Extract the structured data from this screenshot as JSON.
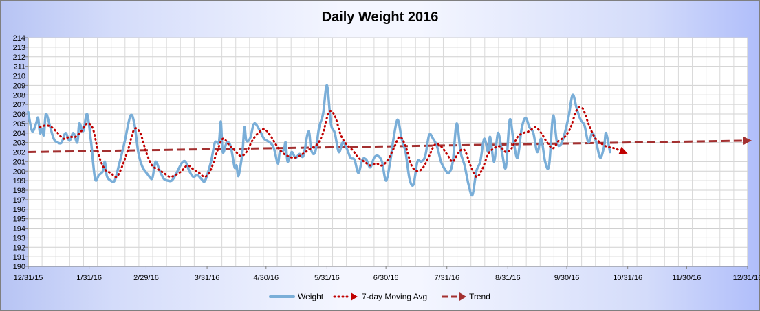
{
  "chart_data": {
    "type": "line",
    "title": "Daily Weight 2016",
    "ylim": [
      190,
      214
    ],
    "xlim": [
      "2015-12-31",
      "2016-12-31"
    ],
    "y_ticks": [
      "190",
      "191",
      "192",
      "193",
      "194",
      "195",
      "196",
      "197",
      "198",
      "199",
      "200",
      "201",
      "202",
      "203",
      "204",
      "205",
      "206",
      "207",
      "208",
      "209",
      "210",
      "211",
      "212",
      "213",
      "214"
    ],
    "x_ticks": [
      {
        "label": "12/31/15",
        "date": "2015-12-31"
      },
      {
        "label": "1/31/16",
        "date": "2016-01-31"
      },
      {
        "label": "2/29/16",
        "date": "2016-02-29"
      },
      {
        "label": "3/31/16",
        "date": "2016-03-31"
      },
      {
        "label": "4/30/16",
        "date": "2016-04-30"
      },
      {
        "label": "5/31/16",
        "date": "2016-05-31"
      },
      {
        "label": "6/30/16",
        "date": "2016-06-30"
      },
      {
        "label": "7/31/16",
        "date": "2016-07-31"
      },
      {
        "label": "8/31/16",
        "date": "2016-08-31"
      },
      {
        "label": "9/30/16",
        "date": "2016-09-30"
      },
      {
        "label": "10/31/16",
        "date": "2016-10-31"
      },
      {
        "label": "11/30/16",
        "date": "2016-11-30"
      },
      {
        "label": "12/31/16",
        "date": "2016-12-31"
      }
    ],
    "grid": true,
    "legend_position": "bottom",
    "series": [
      {
        "name": "Weight",
        "color": "#7aaed8",
        "style": "solid",
        "points": [
          [
            "2015-12-31",
            206.2
          ],
          [
            "2016-01-02",
            204.2
          ],
          [
            "2016-01-04",
            205.0
          ],
          [
            "2016-01-05",
            205.6
          ],
          [
            "2016-01-06",
            204.0
          ],
          [
            "2016-01-07",
            204.4
          ],
          [
            "2016-01-08",
            203.8
          ],
          [
            "2016-01-09",
            206.0
          ],
          [
            "2016-01-11",
            204.8
          ],
          [
            "2016-01-13",
            203.4
          ],
          [
            "2016-01-15",
            203.0
          ],
          [
            "2016-01-17",
            203.0
          ],
          [
            "2016-01-19",
            204.0
          ],
          [
            "2016-01-21",
            203.2
          ],
          [
            "2016-01-23",
            204.0
          ],
          [
            "2016-01-25",
            203.0
          ],
          [
            "2016-01-26",
            205.0
          ],
          [
            "2016-01-28",
            204.2
          ],
          [
            "2016-01-30",
            206.0
          ],
          [
            "2016-02-01",
            203.0
          ],
          [
            "2016-02-03",
            199.2
          ],
          [
            "2016-02-05",
            199.6
          ],
          [
            "2016-02-07",
            200.0
          ],
          [
            "2016-02-08",
            201.0
          ],
          [
            "2016-02-09",
            199.5
          ],
          [
            "2016-02-11",
            199.0
          ],
          [
            "2016-02-13",
            199.0
          ],
          [
            "2016-02-15",
            200.5
          ],
          [
            "2016-02-18",
            203.0
          ],
          [
            "2016-02-21",
            205.8
          ],
          [
            "2016-02-23",
            205.0
          ],
          [
            "2016-02-25",
            202.0
          ],
          [
            "2016-02-27",
            200.5
          ],
          [
            "2016-03-01",
            199.6
          ],
          [
            "2016-03-03",
            199.2
          ],
          [
            "2016-03-04",
            200.2
          ],
          [
            "2016-03-05",
            201.0
          ],
          [
            "2016-03-07",
            200.0
          ],
          [
            "2016-03-09",
            199.2
          ],
          [
            "2016-03-11",
            199.0
          ],
          [
            "2016-03-13",
            199.0
          ],
          [
            "2016-03-15",
            199.6
          ],
          [
            "2016-03-18",
            200.8
          ],
          [
            "2016-03-20",
            201.0
          ],
          [
            "2016-03-22",
            200.0
          ],
          [
            "2016-03-24",
            199.4
          ],
          [
            "2016-03-26",
            199.6
          ],
          [
            "2016-03-28",
            199.2
          ],
          [
            "2016-03-30",
            199.0
          ],
          [
            "2016-04-02",
            201.0
          ],
          [
            "2016-04-04",
            203.0
          ],
          [
            "2016-04-06",
            203.0
          ],
          [
            "2016-04-07",
            205.2
          ],
          [
            "2016-04-08",
            202.0
          ],
          [
            "2016-04-10",
            203.0
          ],
          [
            "2016-04-12",
            202.6
          ],
          [
            "2016-04-14",
            200.4
          ],
          [
            "2016-04-15",
            200.6
          ],
          [
            "2016-04-16",
            199.5
          ],
          [
            "2016-04-18",
            202.0
          ],
          [
            "2016-04-19",
            204.6
          ],
          [
            "2016-04-20",
            203.2
          ],
          [
            "2016-04-22",
            203.5
          ],
          [
            "2016-04-24",
            205.0
          ],
          [
            "2016-04-27",
            204.2
          ],
          [
            "2016-04-29",
            203.4
          ],
          [
            "2016-05-02",
            203.0
          ],
          [
            "2016-05-04",
            202.4
          ],
          [
            "2016-05-06",
            200.8
          ],
          [
            "2016-05-07",
            202.0
          ],
          [
            "2016-05-09",
            202.2
          ],
          [
            "2016-05-10",
            203.0
          ],
          [
            "2016-05-11",
            201.0
          ],
          [
            "2016-05-13",
            202.0
          ],
          [
            "2016-05-15",
            201.4
          ],
          [
            "2016-05-17",
            201.8
          ],
          [
            "2016-05-19",
            201.6
          ],
          [
            "2016-05-21",
            203.8
          ],
          [
            "2016-05-22",
            204.0
          ],
          [
            "2016-05-23",
            202.2
          ],
          [
            "2016-05-25",
            202.0
          ],
          [
            "2016-05-27",
            204.6
          ],
          [
            "2016-05-29",
            206.0
          ],
          [
            "2016-05-31",
            209.0
          ],
          [
            "2016-06-02",
            205.0
          ],
          [
            "2016-06-04",
            204.0
          ],
          [
            "2016-06-06",
            202.0
          ],
          [
            "2016-06-08",
            203.0
          ],
          [
            "2016-06-10",
            202.4
          ],
          [
            "2016-06-12",
            201.4
          ],
          [
            "2016-06-14",
            201.2
          ],
          [
            "2016-06-16",
            199.8
          ],
          [
            "2016-06-18",
            201.2
          ],
          [
            "2016-06-20",
            201.2
          ],
          [
            "2016-06-22",
            200.4
          ],
          [
            "2016-06-24",
            201.4
          ],
          [
            "2016-06-26",
            201.6
          ],
          [
            "2016-06-28",
            201.0
          ],
          [
            "2016-06-30",
            199.0
          ],
          [
            "2016-07-02",
            200.8
          ],
          [
            "2016-07-04",
            203.6
          ],
          [
            "2016-07-06",
            205.4
          ],
          [
            "2016-07-08",
            203.4
          ],
          [
            "2016-07-10",
            202.0
          ],
          [
            "2016-07-12",
            199.2
          ],
          [
            "2016-07-14",
            198.6
          ],
          [
            "2016-07-16",
            201.0
          ],
          [
            "2016-07-18",
            201.0
          ],
          [
            "2016-07-20",
            201.6
          ],
          [
            "2016-07-22",
            203.8
          ],
          [
            "2016-07-24",
            203.4
          ],
          [
            "2016-07-26",
            202.6
          ],
          [
            "2016-07-28",
            201.0
          ],
          [
            "2016-07-30",
            200.2
          ],
          [
            "2016-08-01",
            199.8
          ],
          [
            "2016-08-03",
            201.0
          ],
          [
            "2016-08-05",
            205.0
          ],
          [
            "2016-08-07",
            202.0
          ],
          [
            "2016-08-09",
            200.6
          ],
          [
            "2016-08-11",
            198.6
          ],
          [
            "2016-08-13",
            197.5
          ],
          [
            "2016-08-15",
            200.0
          ],
          [
            "2016-08-17",
            201.0
          ],
          [
            "2016-08-19",
            203.4
          ],
          [
            "2016-08-21",
            202.0
          ],
          [
            "2016-08-22",
            203.6
          ],
          [
            "2016-08-24",
            201.0
          ],
          [
            "2016-08-26",
            204.0
          ],
          [
            "2016-08-28",
            202.0
          ],
          [
            "2016-08-30",
            200.4
          ],
          [
            "2016-09-01",
            205.4
          ],
          [
            "2016-09-03",
            203.0
          ],
          [
            "2016-09-05",
            201.4
          ],
          [
            "2016-09-07",
            204.4
          ],
          [
            "2016-09-09",
            205.6
          ],
          [
            "2016-09-11",
            204.6
          ],
          [
            "2016-09-13",
            204.0
          ],
          [
            "2016-09-15",
            202.0
          ],
          [
            "2016-09-17",
            203.4
          ],
          [
            "2016-09-19",
            201.0
          ],
          [
            "2016-09-21",
            200.6
          ],
          [
            "2016-09-23",
            205.8
          ],
          [
            "2016-09-25",
            203.0
          ],
          [
            "2016-09-27",
            202.8
          ],
          [
            "2016-09-29",
            204.0
          ],
          [
            "2016-10-01",
            205.8
          ],
          [
            "2016-10-03",
            208.0
          ],
          [
            "2016-10-05",
            206.6
          ],
          [
            "2016-10-07",
            205.4
          ],
          [
            "2016-10-09",
            204.8
          ],
          [
            "2016-10-11",
            203.0
          ],
          [
            "2016-10-13",
            204.0
          ],
          [
            "2016-10-15",
            203.0
          ],
          [
            "2016-10-17",
            201.4
          ],
          [
            "2016-10-19",
            202.6
          ],
          [
            "2016-10-20",
            204.0
          ],
          [
            "2016-10-22",
            202.0
          ]
        ]
      },
      {
        "name": "7-day Moving Avg",
        "color": "#c00000",
        "style": "dotted",
        "points": [
          [
            "2016-01-06",
            204.6
          ],
          [
            "2016-01-09",
            204.8
          ],
          [
            "2016-01-12",
            204.6
          ],
          [
            "2016-01-15",
            204.0
          ],
          [
            "2016-01-18",
            203.4
          ],
          [
            "2016-01-21",
            203.6
          ],
          [
            "2016-01-24",
            203.6
          ],
          [
            "2016-01-27",
            204.2
          ],
          [
            "2016-01-30",
            205.0
          ],
          [
            "2016-02-02",
            204.4
          ],
          [
            "2016-02-05",
            201.6
          ],
          [
            "2016-02-08",
            200.2
          ],
          [
            "2016-02-11",
            199.8
          ],
          [
            "2016-02-14",
            199.4
          ],
          [
            "2016-02-17",
            200.6
          ],
          [
            "2016-02-20",
            202.4
          ],
          [
            "2016-02-23",
            204.4
          ],
          [
            "2016-02-26",
            204.0
          ],
          [
            "2016-02-29",
            202.0
          ],
          [
            "2016-03-03",
            200.6
          ],
          [
            "2016-03-06",
            200.2
          ],
          [
            "2016-03-09",
            199.8
          ],
          [
            "2016-03-12",
            199.4
          ],
          [
            "2016-03-15",
            199.6
          ],
          [
            "2016-03-18",
            200.0
          ],
          [
            "2016-03-21",
            200.6
          ],
          [
            "2016-03-24",
            200.2
          ],
          [
            "2016-03-27",
            199.8
          ],
          [
            "2016-03-30",
            199.4
          ],
          [
            "2016-04-02",
            200.2
          ],
          [
            "2016-04-05",
            202.0
          ],
          [
            "2016-04-08",
            203.4
          ],
          [
            "2016-04-11",
            202.8
          ],
          [
            "2016-04-14",
            202.2
          ],
          [
            "2016-04-17",
            201.6
          ],
          [
            "2016-04-20",
            202.0
          ],
          [
            "2016-04-23",
            203.2
          ],
          [
            "2016-04-26",
            204.0
          ],
          [
            "2016-04-29",
            204.4
          ],
          [
            "2016-05-02",
            203.8
          ],
          [
            "2016-05-05",
            202.8
          ],
          [
            "2016-05-08",
            202.0
          ],
          [
            "2016-05-11",
            201.6
          ],
          [
            "2016-05-14",
            201.4
          ],
          [
            "2016-05-17",
            201.6
          ],
          [
            "2016-05-20",
            202.0
          ],
          [
            "2016-05-23",
            202.4
          ],
          [
            "2016-05-26",
            202.8
          ],
          [
            "2016-05-29",
            204.0
          ],
          [
            "2016-06-01",
            206.2
          ],
          [
            "2016-06-04",
            205.8
          ],
          [
            "2016-06-07",
            203.8
          ],
          [
            "2016-06-10",
            202.8
          ],
          [
            "2016-06-13",
            202.2
          ],
          [
            "2016-06-16",
            201.4
          ],
          [
            "2016-06-19",
            201.0
          ],
          [
            "2016-06-22",
            200.6
          ],
          [
            "2016-06-25",
            200.8
          ],
          [
            "2016-06-28",
            200.6
          ],
          [
            "2016-07-01",
            201.2
          ],
          [
            "2016-07-04",
            202.4
          ],
          [
            "2016-07-07",
            203.6
          ],
          [
            "2016-07-10",
            202.6
          ],
          [
            "2016-07-13",
            200.6
          ],
          [
            "2016-07-16",
            200.0
          ],
          [
            "2016-07-19",
            200.4
          ],
          [
            "2016-07-22",
            201.6
          ],
          [
            "2016-07-25",
            202.8
          ],
          [
            "2016-07-28",
            202.6
          ],
          [
            "2016-07-31",
            201.8
          ],
          [
            "2016-08-03",
            201.0
          ],
          [
            "2016-08-06",
            202.0
          ],
          [
            "2016-08-09",
            202.2
          ],
          [
            "2016-08-12",
            200.6
          ],
          [
            "2016-08-15",
            199.4
          ],
          [
            "2016-08-18",
            200.2
          ],
          [
            "2016-08-21",
            201.8
          ],
          [
            "2016-08-24",
            202.4
          ],
          [
            "2016-08-27",
            202.6
          ],
          [
            "2016-08-30",
            202.0
          ],
          [
            "2016-09-02",
            202.4
          ],
          [
            "2016-09-05",
            203.6
          ],
          [
            "2016-09-08",
            204.0
          ],
          [
            "2016-09-11",
            204.2
          ],
          [
            "2016-09-14",
            204.6
          ],
          [
            "2016-09-17",
            204.0
          ],
          [
            "2016-09-20",
            203.0
          ],
          [
            "2016-09-23",
            202.4
          ],
          [
            "2016-09-26",
            203.2
          ],
          [
            "2016-09-29",
            203.6
          ],
          [
            "2016-10-02",
            204.6
          ],
          [
            "2016-10-05",
            206.4
          ],
          [
            "2016-10-08",
            206.6
          ],
          [
            "2016-10-11",
            205.0
          ],
          [
            "2016-10-14",
            203.6
          ],
          [
            "2016-10-17",
            203.0
          ],
          [
            "2016-10-20",
            202.6
          ],
          [
            "2016-10-24",
            202.4
          ],
          [
            "2016-10-29",
            202.0
          ]
        ]
      },
      {
        "name": "Trend",
        "color": "#a33030",
        "style": "dashed",
        "points": [
          [
            "2015-12-31",
            202.0
          ],
          [
            "2016-12-31",
            203.2
          ]
        ]
      }
    ]
  }
}
